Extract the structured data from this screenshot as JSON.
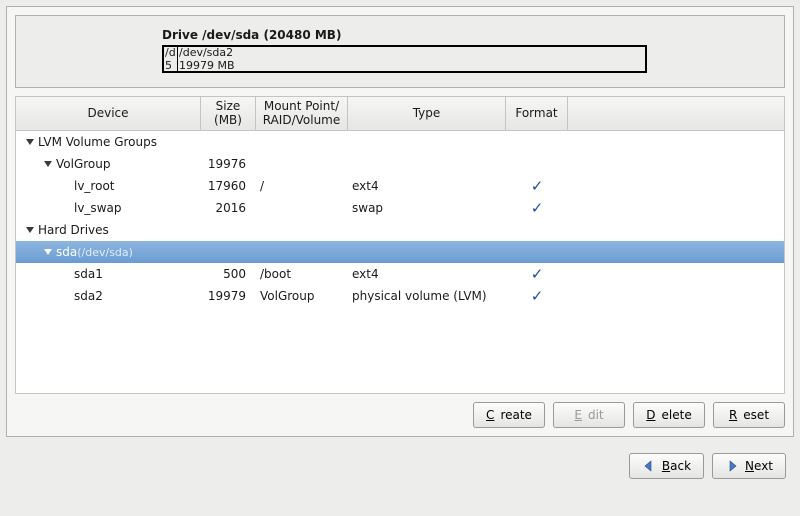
{
  "drive_bar": {
    "title": "Drive /dev/sda (20480 MB)",
    "segments": [
      {
        "line1": "/d",
        "line2": "5"
      },
      {
        "line1": "/dev/sda2",
        "line2": "19979 MB"
      }
    ]
  },
  "columns": {
    "device": "Device",
    "size": "Size\n(MB)",
    "mount": "Mount Point/\nRAID/Volume",
    "type": "Type",
    "format": "Format"
  },
  "rows": [
    {
      "name": "lvm-groups",
      "indent": 0,
      "expander": true,
      "label": "LVM Volume Groups",
      "size": "",
      "mount": "",
      "type": "",
      "format": false,
      "selected": false
    },
    {
      "name": "volgroup",
      "indent": 1,
      "expander": true,
      "label": "VolGroup",
      "size": "19976",
      "mount": "",
      "type": "",
      "format": false,
      "selected": false
    },
    {
      "name": "lv-root",
      "indent": 2,
      "expander": false,
      "label": "lv_root",
      "size": "17960",
      "mount": "/",
      "type": "ext4",
      "format": true,
      "selected": false
    },
    {
      "name": "lv-swap",
      "indent": 2,
      "expander": false,
      "label": "lv_swap",
      "size": "2016",
      "mount": "",
      "type": "swap",
      "format": true,
      "selected": false
    },
    {
      "name": "hard-drives",
      "indent": 0,
      "expander": true,
      "label": "Hard Drives",
      "size": "",
      "mount": "",
      "type": "",
      "format": false,
      "selected": false
    },
    {
      "name": "sda",
      "indent": 1,
      "expander": true,
      "label": "sda",
      "suffix": "(/dev/sda)",
      "size": "",
      "mount": "",
      "type": "",
      "format": false,
      "selected": true
    },
    {
      "name": "sda1",
      "indent": 2,
      "expander": false,
      "label": "sda1",
      "size": "500",
      "mount": "/boot",
      "type": "ext4",
      "format": true,
      "selected": false
    },
    {
      "name": "sda2",
      "indent": 2,
      "expander": false,
      "label": "sda2",
      "size": "19979",
      "mount": "VolGroup",
      "type": "physical volume (LVM)",
      "format": true,
      "selected": false
    }
  ],
  "buttons": {
    "create": "Create",
    "edit": "Edit",
    "delete": "Delete",
    "reset": "Reset",
    "back": "Back",
    "next": "Next"
  },
  "edit_disabled": true,
  "colors": {
    "checkmark": "#1a4f9c",
    "selection_top": "#8eb6e0",
    "selection_bottom": "#6a9cd2",
    "arrow_back": "#4a78c8",
    "arrow_next": "#4a78c8"
  },
  "checkmark_glyph": "✓"
}
